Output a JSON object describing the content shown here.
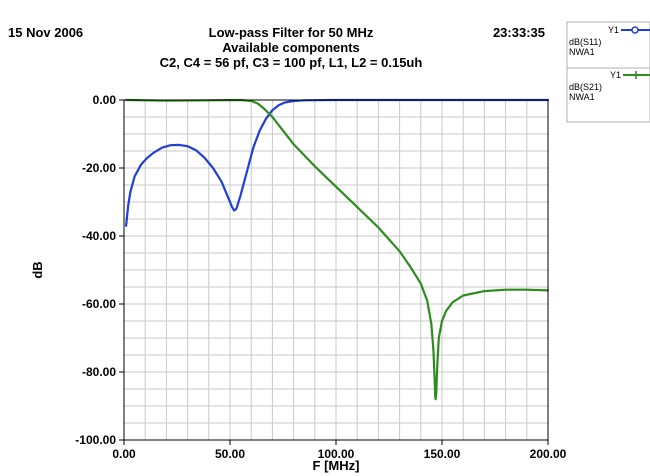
{
  "header": {
    "date": "15 Nov 2006",
    "time": "23:33:35",
    "title_lines": [
      "Low-pass Filter for 50 MHz",
      "Available components",
      "C2, C4 = 56 pf, C3 = 100 pf, L1, L2 = 0.15uh"
    ]
  },
  "legend": [
    {
      "marker": "Y1",
      "line1": "dB(S11)",
      "line2": "NWA1",
      "color": "#1f3fd6",
      "marker_shape": "circle"
    },
    {
      "marker": "Y1",
      "line1": "dB(S21)",
      "line2": "NWA1",
      "color": "#2e8b1e",
      "marker_shape": "tick"
    }
  ],
  "chart_data": {
    "type": "line",
    "title": "Low-pass Filter for 50 MHz",
    "xlabel": "F [MHz]",
    "ylabel": "dB",
    "xlim": [
      0,
      200
    ],
    "ylim": [
      -100,
      0
    ],
    "x_ticks": [
      0,
      50,
      100,
      150,
      200
    ],
    "x_tick_labels": [
      "0.00",
      "50.00",
      "100.00",
      "150.00",
      "200.00"
    ],
    "y_ticks": [
      0,
      -20,
      -40,
      -60,
      -80,
      -100
    ],
    "y_tick_labels": [
      "0.00",
      "-20.00",
      "-40.00",
      "-60.00",
      "-80.00",
      "-100.00"
    ],
    "grid": true,
    "series": [
      {
        "name": "dB(S11)",
        "color": "#1f3fd6",
        "points": [
          [
            1,
            -37
          ],
          [
            2,
            -31
          ],
          [
            3,
            -27
          ],
          [
            5,
            -22.5
          ],
          [
            8,
            -19
          ],
          [
            11,
            -17
          ],
          [
            14,
            -15.5
          ],
          [
            18,
            -14
          ],
          [
            22,
            -13.3
          ],
          [
            26,
            -13.2
          ],
          [
            30,
            -13.6
          ],
          [
            34,
            -14.8
          ],
          [
            38,
            -17
          ],
          [
            42,
            -20
          ],
          [
            46,
            -24
          ],
          [
            49,
            -28.5
          ],
          [
            51,
            -31.5
          ],
          [
            52,
            -32.5
          ],
          [
            53,
            -32
          ],
          [
            55,
            -28
          ],
          [
            58,
            -21
          ],
          [
            61,
            -14
          ],
          [
            64,
            -9
          ],
          [
            67,
            -5.5
          ],
          [
            70,
            -3
          ],
          [
            73,
            -1.5
          ],
          [
            76,
            -0.7
          ],
          [
            80,
            -0.3
          ],
          [
            85,
            -0.1
          ],
          [
            90,
            -0.05
          ],
          [
            100,
            0
          ],
          [
            150,
            0
          ],
          [
            200,
            0
          ]
        ]
      },
      {
        "name": "dB(S21)",
        "color": "#2e8b1e",
        "points": [
          [
            1,
            0
          ],
          [
            20,
            -0.2
          ],
          [
            40,
            -0.1
          ],
          [
            55,
            0
          ],
          [
            60,
            -0.3
          ],
          [
            63,
            -1
          ],
          [
            66,
            -2.5
          ],
          [
            70,
            -5
          ],
          [
            75,
            -9
          ],
          [
            80,
            -13
          ],
          [
            90,
            -19.5
          ],
          [
            100,
            -25.5
          ],
          [
            110,
            -31.5
          ],
          [
            120,
            -37.5
          ],
          [
            130,
            -44.5
          ],
          [
            135,
            -49
          ],
          [
            140,
            -54
          ],
          [
            143,
            -59
          ],
          [
            145,
            -66
          ],
          [
            146,
            -74
          ],
          [
            146.5,
            -82
          ],
          [
            146.8,
            -87
          ],
          [
            147,
            -88
          ],
          [
            147.3,
            -86
          ],
          [
            147.8,
            -78
          ],
          [
            148.5,
            -70
          ],
          [
            150,
            -65
          ],
          [
            152,
            -62
          ],
          [
            155,
            -59.5
          ],
          [
            160,
            -57.5
          ],
          [
            170,
            -56.2
          ],
          [
            180,
            -55.8
          ],
          [
            190,
            -55.8
          ],
          [
            200,
            -56
          ]
        ]
      }
    ]
  }
}
